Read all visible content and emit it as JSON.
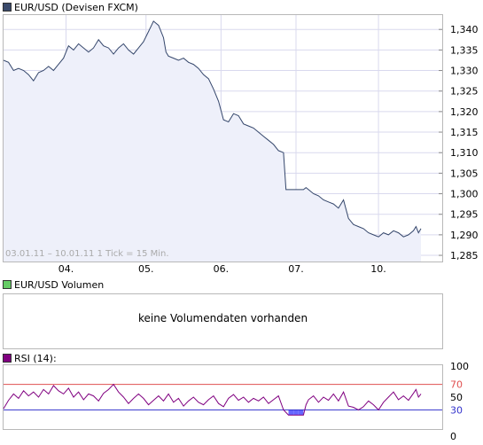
{
  "price_legend": {
    "label": "EUR/USD (Devisen FXCM)",
    "color": "#3a4a6b"
  },
  "volume_legend": {
    "label": "EUR/USD Volumen",
    "color": "#66cc66"
  },
  "volume_panel": {
    "message": "keine Volumendaten vorhanden"
  },
  "rsi_legend": {
    "label": "RSI (14):",
    "color": "#800080"
  },
  "range_label": "03.01.11 – 10.01.11   1 Tick = 15 Min.",
  "chart_data": [
    {
      "type": "area",
      "name": "EUR/USD (Devisen FXCM)",
      "x_ticks": [
        "04.",
        "05.",
        "06.",
        "07.",
        "10."
      ],
      "y_ticks": [
        "1,340",
        "1,335",
        "1,330",
        "1,325",
        "1,320",
        "1,315",
        "1,310",
        "1,305",
        "1,300",
        "1,295",
        "1,290",
        "1,285"
      ],
      "y_tick_values": [
        1.34,
        1.335,
        1.33,
        1.325,
        1.32,
        1.315,
        1.31,
        1.305,
        1.3,
        1.295,
        1.29,
        1.285
      ],
      "ylim": [
        1.2835,
        1.3435
      ],
      "grid": true,
      "line_color": "#34466b",
      "fill_color": "#eef0fa",
      "points": [
        [
          0,
          1.3325
        ],
        [
          2,
          1.332
        ],
        [
          4,
          1.33
        ],
        [
          6,
          1.3305
        ],
        [
          8,
          1.33
        ],
        [
          10,
          1.329
        ],
        [
          12,
          1.3275
        ],
        [
          14,
          1.3295
        ],
        [
          16,
          1.33
        ],
        [
          18,
          1.331
        ],
        [
          20,
          1.33
        ],
        [
          22,
          1.3315
        ],
        [
          24,
          1.333
        ],
        [
          26,
          1.336
        ],
        [
          28,
          1.335
        ],
        [
          30,
          1.3365
        ],
        [
          32,
          1.3355
        ],
        [
          34,
          1.3345
        ],
        [
          36,
          1.3355
        ],
        [
          38,
          1.3375
        ],
        [
          40,
          1.336
        ],
        [
          42,
          1.3355
        ],
        [
          44,
          1.334
        ],
        [
          46,
          1.3355
        ],
        [
          48,
          1.3365
        ],
        [
          50,
          1.335
        ],
        [
          52,
          1.334
        ],
        [
          54,
          1.3355
        ],
        [
          56,
          1.337
        ],
        [
          58,
          1.3395
        ],
        [
          60,
          1.342
        ],
        [
          62,
          1.341
        ],
        [
          64,
          1.338
        ],
        [
          65,
          1.3345
        ],
        [
          66,
          1.3335
        ],
        [
          68,
          1.333
        ],
        [
          70,
          1.3325
        ],
        [
          72,
          1.333
        ],
        [
          74,
          1.332
        ],
        [
          76,
          1.3315
        ],
        [
          78,
          1.3305
        ],
        [
          80,
          1.329
        ],
        [
          82,
          1.328
        ],
        [
          84,
          1.3255
        ],
        [
          86,
          1.3225
        ],
        [
          88,
          1.318
        ],
        [
          90,
          1.3175
        ],
        [
          92,
          1.3195
        ],
        [
          94,
          1.319
        ],
        [
          96,
          1.317
        ],
        [
          98,
          1.3165
        ],
        [
          100,
          1.316
        ],
        [
          102,
          1.315
        ],
        [
          104,
          1.314
        ],
        [
          106,
          1.313
        ],
        [
          108,
          1.312
        ],
        [
          110,
          1.3105
        ],
        [
          112,
          1.31
        ],
        [
          113,
          1.301
        ],
        [
          114,
          1.301
        ],
        [
          116,
          1.301
        ],
        [
          118,
          1.301
        ],
        [
          120,
          1.301
        ],
        [
          121,
          1.3015
        ],
        [
          122,
          1.301
        ],
        [
          124,
          1.3
        ],
        [
          126,
          1.2995
        ],
        [
          128,
          1.2985
        ],
        [
          130,
          1.298
        ],
        [
          132,
          1.2975
        ],
        [
          134,
          1.2965
        ],
        [
          136,
          1.2985
        ],
        [
          138,
          1.294
        ],
        [
          140,
          1.2925
        ],
        [
          142,
          1.292
        ],
        [
          144,
          1.2915
        ],
        [
          146,
          1.2905
        ],
        [
          148,
          1.29
        ],
        [
          150,
          1.2895
        ],
        [
          152,
          1.2905
        ],
        [
          154,
          1.29
        ],
        [
          156,
          1.291
        ],
        [
          158,
          1.2905
        ],
        [
          160,
          1.2895
        ],
        [
          162,
          1.29
        ],
        [
          164,
          1.291
        ],
        [
          165,
          1.292
        ],
        [
          166,
          1.2905
        ],
        [
          167,
          1.2915
        ]
      ],
      "x_tick_positions": [
        25,
        57,
        87,
        117,
        150
      ]
    },
    {
      "type": "line",
      "name": "RSI (14):",
      "y_ticks": [
        "100",
        "70",
        "50",
        "30",
        "0"
      ],
      "y_tick_values": [
        100,
        70,
        50,
        30,
        0
      ],
      "ylim": [
        0,
        100
      ],
      "upper_band": 70,
      "lower_band": 30,
      "line_color": "#800080",
      "band_fill_color": "#6666ff",
      "points": [
        [
          0,
          32
        ],
        [
          2,
          45
        ],
        [
          4,
          55
        ],
        [
          6,
          48
        ],
        [
          8,
          60
        ],
        [
          10,
          52
        ],
        [
          12,
          58
        ],
        [
          14,
          50
        ],
        [
          16,
          62
        ],
        [
          18,
          55
        ],
        [
          20,
          68
        ],
        [
          22,
          60
        ],
        [
          24,
          55
        ],
        [
          26,
          64
        ],
        [
          28,
          50
        ],
        [
          30,
          58
        ],
        [
          32,
          46
        ],
        [
          34,
          55
        ],
        [
          36,
          52
        ],
        [
          38,
          44
        ],
        [
          40,
          56
        ],
        [
          42,
          62
        ],
        [
          44,
          70
        ],
        [
          46,
          58
        ],
        [
          48,
          50
        ],
        [
          50,
          40
        ],
        [
          52,
          48
        ],
        [
          54,
          55
        ],
        [
          56,
          48
        ],
        [
          58,
          38
        ],
        [
          60,
          45
        ],
        [
          62,
          52
        ],
        [
          64,
          44
        ],
        [
          66,
          55
        ],
        [
          68,
          42
        ],
        [
          70,
          48
        ],
        [
          72,
          36
        ],
        [
          74,
          44
        ],
        [
          76,
          50
        ],
        [
          78,
          42
        ],
        [
          80,
          38
        ],
        [
          82,
          46
        ],
        [
          84,
          52
        ],
        [
          86,
          40
        ],
        [
          88,
          35
        ],
        [
          90,
          48
        ],
        [
          92,
          54
        ],
        [
          94,
          45
        ],
        [
          96,
          50
        ],
        [
          98,
          42
        ],
        [
          100,
          48
        ],
        [
          102,
          44
        ],
        [
          104,
          50
        ],
        [
          106,
          40
        ],
        [
          108,
          46
        ],
        [
          110,
          52
        ],
        [
          112,
          30
        ],
        [
          114,
          22
        ],
        [
          116,
          22
        ],
        [
          118,
          22
        ],
        [
          120,
          22
        ],
        [
          121,
          38
        ],
        [
          122,
          46
        ],
        [
          124,
          52
        ],
        [
          126,
          42
        ],
        [
          128,
          50
        ],
        [
          130,
          45
        ],
        [
          132,
          55
        ],
        [
          134,
          44
        ],
        [
          136,
          58
        ],
        [
          138,
          36
        ],
        [
          140,
          34
        ],
        [
          142,
          30
        ],
        [
          144,
          35
        ],
        [
          146,
          44
        ],
        [
          148,
          38
        ],
        [
          150,
          30
        ],
        [
          152,
          42
        ],
        [
          154,
          50
        ],
        [
          156,
          58
        ],
        [
          158,
          46
        ],
        [
          160,
          52
        ],
        [
          162,
          45
        ],
        [
          164,
          56
        ],
        [
          165,
          62
        ],
        [
          166,
          50
        ],
        [
          167,
          55
        ]
      ]
    }
  ]
}
